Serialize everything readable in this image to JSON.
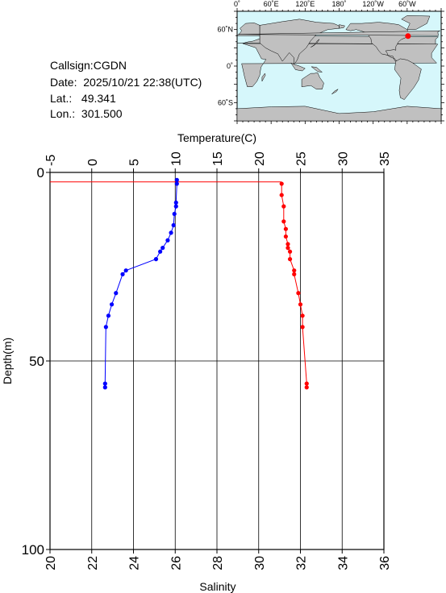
{
  "station": {
    "callsign_label": "Callsign:",
    "callsign": "CGDN",
    "date_label": "Date:",
    "date": "2025/10/21 22:38(UTC)",
    "lat_label": "Lat.:",
    "lat": "49.341",
    "lon_label": "Lon.:",
    "lon": "301.500"
  },
  "map": {
    "top_ticks": [
      "0˚",
      "60˚E",
      "120˚E",
      "180˚",
      "120˚W",
      "60˚W"
    ],
    "left_ticks": [
      "60˚N",
      "0˚",
      "60˚S"
    ],
    "ocean_color": "#d6f7fb",
    "land_color": "#c0c0c0",
    "marker_color": "#ff0000"
  },
  "chart_data": {
    "type": "line",
    "depth_axis": {
      "label": "Depth(m)",
      "range": [
        0,
        100
      ],
      "ticks": [
        0,
        50,
        100
      ],
      "inverted": true
    },
    "temperature_axis": {
      "label": "Temperature(C)",
      "range": [
        -5,
        35
      ],
      "ticks": [
        -5,
        0,
        5,
        10,
        15,
        20,
        25,
        30,
        35
      ]
    },
    "salinity_axis": {
      "label": "Salinity",
      "range": [
        20,
        36
      ],
      "ticks": [
        20,
        22,
        24,
        26,
        28,
        30,
        32,
        34,
        36
      ]
    },
    "grid": true,
    "surface_marker_depth": 2.5,
    "series": [
      {
        "quantity": "temperature",
        "color": "#0000ff",
        "points": [
          {
            "depth": 2,
            "value": 10.2
          },
          {
            "depth": 3,
            "value": 10.2
          },
          {
            "depth": 8,
            "value": 10.1
          },
          {
            "depth": 9,
            "value": 10.1
          },
          {
            "depth": 11,
            "value": 9.9
          },
          {
            "depth": 14,
            "value": 9.8
          },
          {
            "depth": 16,
            "value": 9.5
          },
          {
            "depth": 18,
            "value": 9.1
          },
          {
            "depth": 20,
            "value": 8.5
          },
          {
            "depth": 21,
            "value": 8.2
          },
          {
            "depth": 23,
            "value": 7.7
          },
          {
            "depth": 26,
            "value": 4.1
          },
          {
            "depth": 27,
            "value": 3.7
          },
          {
            "depth": 32,
            "value": 2.9
          },
          {
            "depth": 35,
            "value": 2.4
          },
          {
            "depth": 38,
            "value": 2.0
          },
          {
            "depth": 41,
            "value": 1.7
          },
          {
            "depth": 56,
            "value": 1.6
          },
          {
            "depth": 57,
            "value": 1.6
          }
        ]
      },
      {
        "quantity": "salinity",
        "color": "#ff0000",
        "points": [
          {
            "depth": 3,
            "value": 31.1
          },
          {
            "depth": 6,
            "value": 31.1
          },
          {
            "depth": 9,
            "value": 31.2
          },
          {
            "depth": 13,
            "value": 31.2
          },
          {
            "depth": 15,
            "value": 31.3
          },
          {
            "depth": 17,
            "value": 31.3
          },
          {
            "depth": 19,
            "value": 31.4
          },
          {
            "depth": 20,
            "value": 31.4
          },
          {
            "depth": 21,
            "value": 31.5
          },
          {
            "depth": 23,
            "value": 31.5
          },
          {
            "depth": 26,
            "value": 31.7
          },
          {
            "depth": 27,
            "value": 31.7
          },
          {
            "depth": 32,
            "value": 31.9
          },
          {
            "depth": 35,
            "value": 32.0
          },
          {
            "depth": 38,
            "value": 32.1
          },
          {
            "depth": 41,
            "value": 32.1
          },
          {
            "depth": 56,
            "value": 32.3
          },
          {
            "depth": 57,
            "value": 32.3
          }
        ]
      }
    ]
  }
}
